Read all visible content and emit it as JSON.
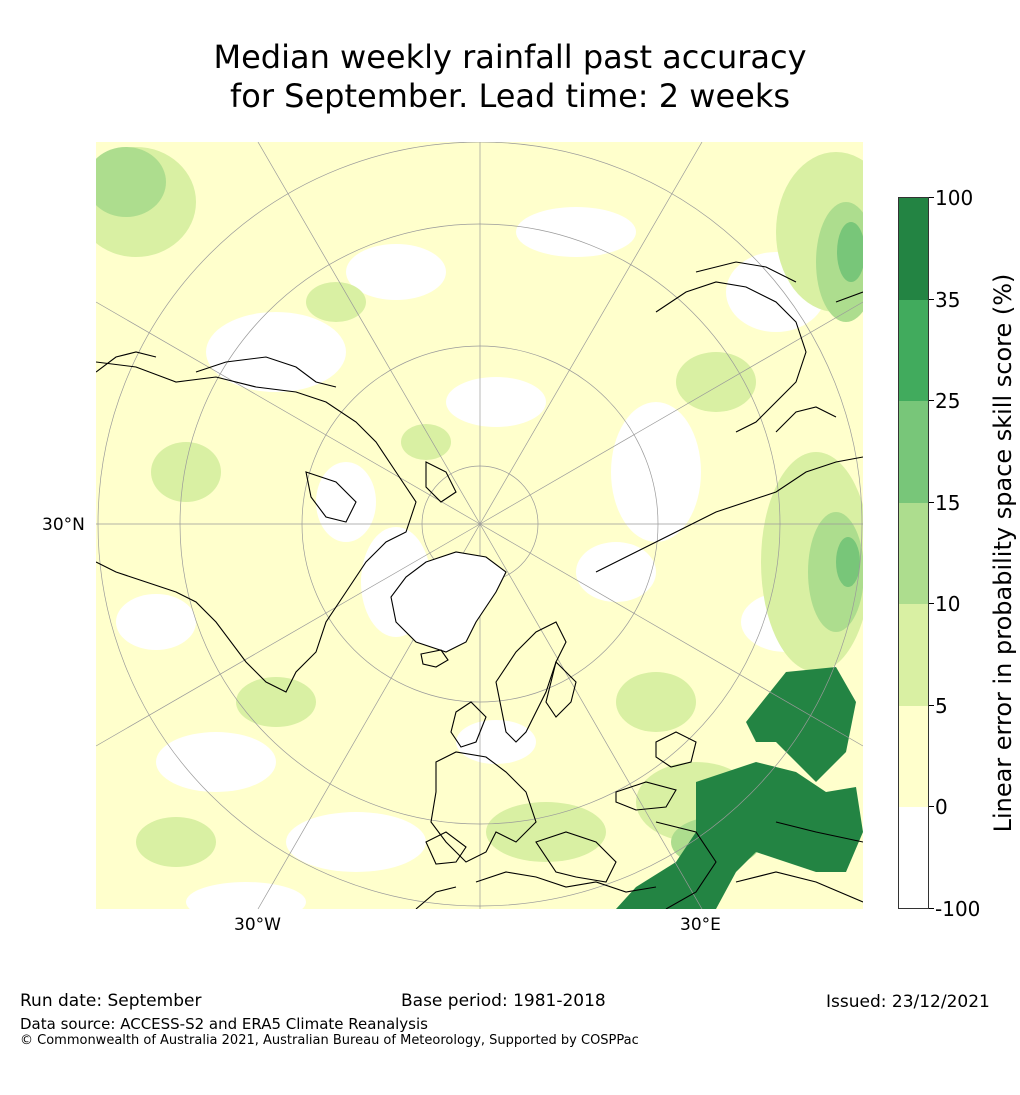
{
  "title": {
    "line1": "Median weekly rainfall past accuracy",
    "line2": "for September. Lead time: 2 weeks"
  },
  "map": {
    "projection": "north-polar-stereographic",
    "graticule_labels": {
      "left": "30°N",
      "bottom_left": "30°W",
      "bottom_right": "30°E"
    },
    "colors": {
      "neg": "#ffffff",
      "c0_5": "#ffffcc",
      "c5_10": "#d9f0a3",
      "c10_15": "#addd8e",
      "c15_25": "#78c679",
      "c25_35": "#41ab5d",
      "c35_100": "#238443",
      "coast": "#000000",
      "grid": "#9a9a9a"
    }
  },
  "colorbar": {
    "label": "Linear error in probability space skill score (%)",
    "ticks": [
      "100",
      "35",
      "25",
      "15",
      "10",
      "5",
      "0",
      "-100"
    ],
    "segments": [
      "#238443",
      "#41ab5d",
      "#78c679",
      "#addd8e",
      "#d9f0a3",
      "#ffffcc",
      "#ffffff"
    ]
  },
  "footer": {
    "run_date": "Run date: September",
    "base_period": "Base period: 1981-2018",
    "issued": "Issued: 23/12/2021",
    "data_source": "Data source: ACCESS-S2 and ERA5 Climate Reanalysis",
    "copyright": "© Commonwealth of Australia 2021, Australian Bureau of Meteorology, Supported by COSPPac"
  }
}
